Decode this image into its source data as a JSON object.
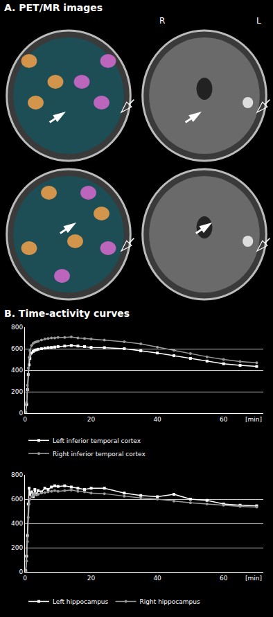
{
  "panel_a": {
    "title": "A. PET/MR images",
    "orientation_labels": [
      "R",
      "L"
    ]
  },
  "panel_b": {
    "title": "B. Time-activity curves"
  },
  "chart_data": [
    {
      "type": "line",
      "x": [
        0,
        0.25,
        0.5,
        0.75,
        1,
        1.25,
        1.5,
        2,
        2.5,
        3,
        3.5,
        4,
        5,
        6,
        7,
        8,
        9,
        10,
        12,
        14,
        16,
        18,
        20,
        24,
        30,
        35,
        40,
        45,
        50,
        55,
        60,
        65,
        70
      ],
      "series": [
        {
          "name": "Left inferior temporal cortex",
          "color": "#ffffff",
          "marker": "square",
          "values": [
            0,
            5,
            80,
            220,
            360,
            450,
            510,
            560,
            575,
            585,
            590,
            595,
            600,
            605,
            610,
            612,
            615,
            620,
            625,
            630,
            625,
            620,
            612,
            610,
            600,
            580,
            560,
            535,
            510,
            485,
            460,
            445,
            435
          ]
        },
        {
          "name": "Right inferior temporal cortex",
          "color": "#9a9a9a",
          "marker": "circle",
          "values": [
            0,
            10,
            100,
            260,
            420,
            520,
            580,
            630,
            650,
            660,
            665,
            670,
            680,
            690,
            695,
            700,
            700,
            705,
            705,
            710,
            700,
            695,
            690,
            680,
            665,
            645,
            615,
            585,
            555,
            525,
            500,
            480,
            470
          ]
        }
      ],
      "x_label": "[min]",
      "xlim": [
        0,
        72
      ],
      "xticks": [
        0,
        20,
        40,
        60
      ],
      "ylim": [
        0,
        800
      ],
      "yticks": [
        0,
        200,
        400,
        600,
        800
      ],
      "grid": true,
      "legend": "bottom"
    },
    {
      "type": "line",
      "x": [
        0,
        0.25,
        0.5,
        0.75,
        1,
        1.25,
        1.5,
        2,
        2.5,
        3,
        3.5,
        4,
        5,
        6,
        7,
        8,
        9,
        10,
        12,
        14,
        16,
        18,
        20,
        24,
        30,
        35,
        40,
        45,
        50,
        55,
        60,
        65,
        70
      ],
      "series": [
        {
          "name": "Left hippocampus",
          "color": "#ffffff",
          "marker": "square",
          "values": [
            0,
            10,
            130,
            300,
            560,
            690,
            640,
            660,
            620,
            680,
            640,
            670,
            660,
            690,
            680,
            700,
            710,
            705,
            710,
            700,
            690,
            680,
            690,
            690,
            650,
            630,
            620,
            640,
            600,
            590,
            560,
            550,
            545
          ]
        },
        {
          "name": "Right hippocampus",
          "color": "#9a9a9a",
          "marker": "circle",
          "values": [
            0,
            5,
            90,
            250,
            450,
            560,
            600,
            620,
            630,
            640,
            635,
            640,
            650,
            655,
            660,
            665,
            670,
            665,
            670,
            675,
            665,
            660,
            650,
            645,
            625,
            610,
            600,
            585,
            570,
            560,
            550,
            540,
            535
          ]
        }
      ],
      "x_label": "[min]",
      "xlim": [
        0,
        72
      ],
      "xticks": [
        0,
        20,
        40,
        60
      ],
      "ylim": [
        0,
        800
      ],
      "yticks": [
        0,
        200,
        400,
        600,
        800
      ],
      "grid": true,
      "legend": "bottom"
    }
  ]
}
